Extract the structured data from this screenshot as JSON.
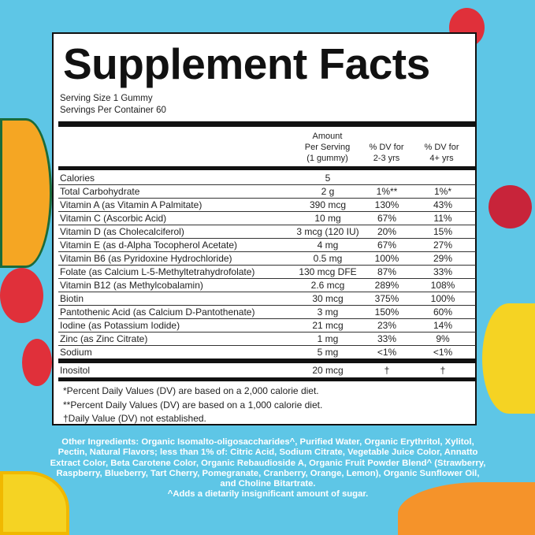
{
  "title": "Supplement Facts",
  "serving_size": "Serving Size 1 Gummy",
  "servings_per_container": "Servings Per Container 60",
  "headers": {
    "amount": [
      "Amount",
      "Per Serving",
      "(1 gummy)"
    ],
    "dv_2_3": [
      "% DV for",
      "2-3 yrs"
    ],
    "dv_4": [
      "% DV for",
      "4+ yrs"
    ]
  },
  "rows": [
    {
      "name": "Calories",
      "amount": "5",
      "dv_2_3": "",
      "dv_4": ""
    },
    {
      "name": "Total Carbohydrate",
      "amount": "2 g",
      "dv_2_3": "1%**",
      "dv_4": "1%*"
    },
    {
      "name": "Vitamin A (as Vitamin A Palmitate)",
      "amount": "390 mcg",
      "dv_2_3": "130%",
      "dv_4": "43%"
    },
    {
      "name": "Vitamin C (Ascorbic Acid)",
      "amount": "10 mg",
      "dv_2_3": "67%",
      "dv_4": "11%"
    },
    {
      "name": "Vitamin D (as Cholecalciferol)",
      "amount": "3 mcg (120 IU)",
      "dv_2_3": "20%",
      "dv_4": "15%"
    },
    {
      "name": "Vitamin E (as d-Alpha Tocopherol Acetate)",
      "amount": "4 mg",
      "dv_2_3": "67%",
      "dv_4": "27%"
    },
    {
      "name": "Vitamin B6 (as Pyridoxine Hydrochloride)",
      "amount": "0.5 mg",
      "dv_2_3": "100%",
      "dv_4": "29%"
    },
    {
      "name": "Folate (as Calcium L-5-Methyltetrahydrofolate)",
      "amount": "130 mcg DFE",
      "dv_2_3": "87%",
      "dv_4": "33%"
    },
    {
      "name": "Vitamin B12 (as Methylcobalamin)",
      "amount": "2.6 mcg",
      "dv_2_3": "289%",
      "dv_4": "108%"
    },
    {
      "name": "Biotin",
      "amount": "30 mcg",
      "dv_2_3": "375%",
      "dv_4": "100%"
    },
    {
      "name": "Pantothenic Acid (as Calcium D-Pantothenate)",
      "amount": "3 mg",
      "dv_2_3": "150%",
      "dv_4": "60%"
    },
    {
      "name": "Iodine (as Potassium Iodide)",
      "amount": "21 mcg",
      "dv_2_3": "23%",
      "dv_4": "14%"
    },
    {
      "name": "Zinc (as Zinc Citrate)",
      "amount": "1 mg",
      "dv_2_3": "33%",
      "dv_4": "9%"
    },
    {
      "name": "Sodium",
      "amount": "5 mg",
      "dv_2_3": "<1%",
      "dv_4": "<1%"
    }
  ],
  "inositol": {
    "name": "Inositol",
    "amount": "20 mcg",
    "dv_2_3": "†",
    "dv_4": "†"
  },
  "footnotes": [
    "*Percent Daily Values (DV) are based on a 2,000 calorie diet.",
    "**Percent Daily Values (DV) are based on a 1,000 calorie diet.",
    "†Daily Value (DV) not established."
  ],
  "other_ingredients": "Other Ingredients: Organic Isomalto-oligosaccharides^, Purified Water, Organic Erythritol, Xylitol, Pectin, Natural Flavors; less than 1% of: Citric Acid, Sodium Citrate, Vegetable Juice Color, Annatto Extract Color, Beta Carotene Color, Organic Rebaudioside A, Organic Fruit Powder Blend^ (Strawberry, Raspberry, Blueberry, Tart Cherry, Pomegranate, Cranberry, Orange, Lemon), Organic Sunflower Oil, and Choline Bitartrate.",
  "sugar_note": "^Adds a dietarily insignificant amount of sugar.",
  "colors": {
    "background": "#5ec6e6",
    "panel": "#ffffff",
    "text": "#222222"
  }
}
